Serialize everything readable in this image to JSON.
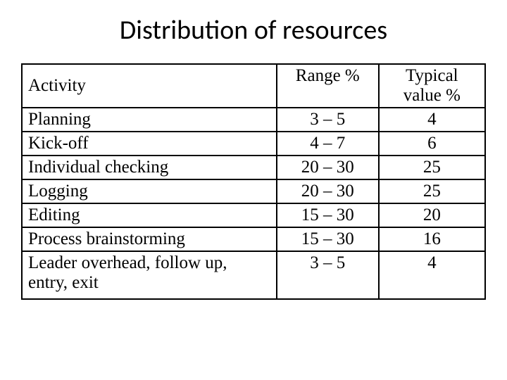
{
  "title": "Distribution of resources",
  "table": {
    "columns": [
      "Activity",
      "Range %",
      "Typical value %"
    ],
    "column_align": [
      "left",
      "center",
      "center"
    ],
    "column_widths_pct": [
      55,
      22,
      23
    ],
    "rows": [
      [
        "Planning",
        "3 – 5",
        "4"
      ],
      [
        "Kick-off",
        "4 – 7",
        "6"
      ],
      [
        "Individual checking",
        "20 – 30",
        "25"
      ],
      [
        "Logging",
        "20 – 30",
        "25"
      ],
      [
        "Editing",
        "15 – 30",
        "20"
      ],
      [
        "Process brainstorming",
        "15 – 30",
        "16"
      ],
      [
        "Leader overhead, follow up, entry, exit",
        "3 – 5",
        "4"
      ]
    ],
    "border_color": "#000000",
    "background_color": "#ffffff",
    "title_fontsize_pt": 29,
    "cell_fontsize_pt": 19,
    "title_font": "Calibri",
    "cell_font": "Times New Roman"
  }
}
